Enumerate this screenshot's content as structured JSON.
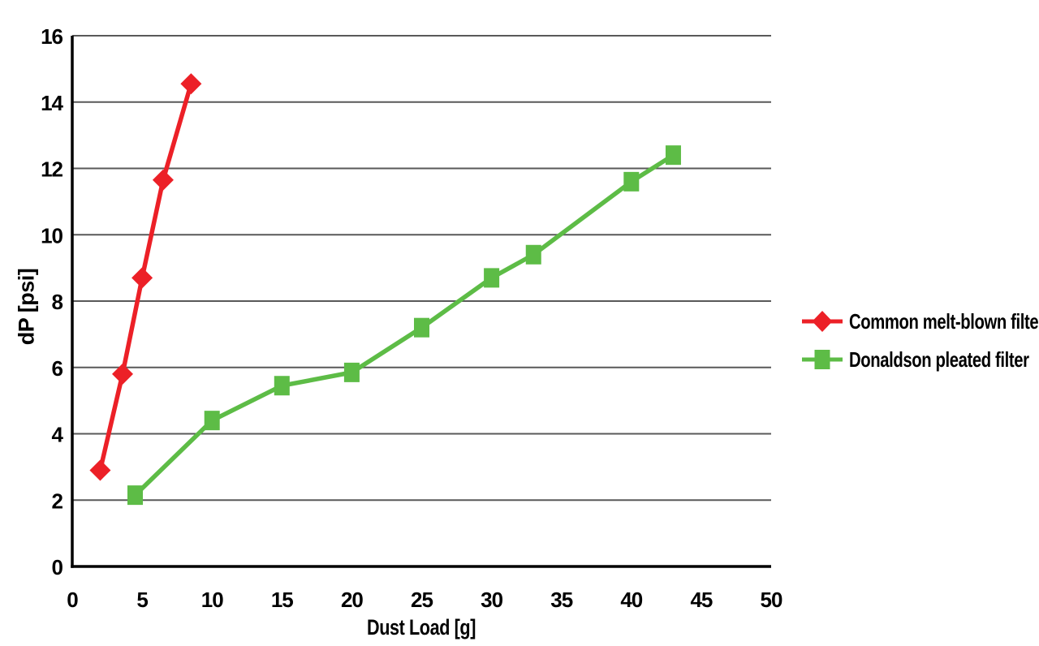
{
  "chart_data": {
    "type": "line",
    "title": "",
    "xlabel": "Dust Load [g]",
    "ylabel": "dP [psi]",
    "xlim": [
      0,
      50
    ],
    "ylim": [
      0,
      16
    ],
    "x_ticks": [
      0,
      5,
      10,
      15,
      20,
      25,
      30,
      35,
      40,
      45,
      50
    ],
    "y_ticks": [
      0,
      2,
      4,
      6,
      8,
      10,
      12,
      14,
      16
    ],
    "grid": "horizontal-only",
    "legend_position": "right-middle",
    "axis_color": "#000000",
    "gridline_color": "#595959",
    "background_color": "#ffffff",
    "series": [
      {
        "name": "Common melt-blown filter",
        "color": "#EC2027",
        "marker": "diamond",
        "points": [
          [
            2,
            2.9
          ],
          [
            3.6,
            5.8
          ],
          [
            5,
            8.7
          ],
          [
            6.5,
            11.65
          ],
          [
            8.5,
            14.55
          ]
        ]
      },
      {
        "name": "Donaldson pleated filter",
        "color": "#5DBC46",
        "marker": "square",
        "points": [
          [
            4.5,
            2.15
          ],
          [
            10,
            4.4
          ],
          [
            15,
            5.45
          ],
          [
            20,
            5.85
          ],
          [
            25,
            7.2
          ],
          [
            30,
            8.7
          ],
          [
            33,
            9.4
          ],
          [
            40,
            11.6
          ],
          [
            43,
            12.4
          ]
        ]
      }
    ]
  }
}
